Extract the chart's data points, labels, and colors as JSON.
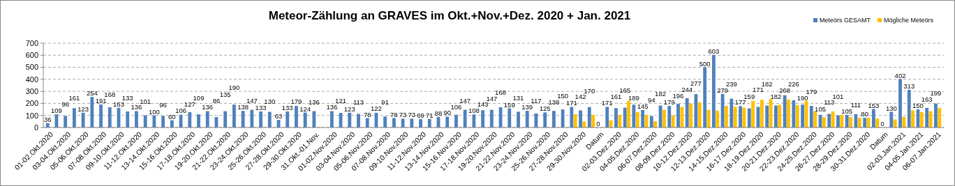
{
  "chart_data": {
    "type": "bar",
    "title": "Meteor-Zählung an GRAVES im Okt.+Nov.+Dez. 2020 + Jan. 2021",
    "categories": [
      "01-02.Okt.2020",
      null,
      "03-04.Okt.2020",
      null,
      "05-06.Okt.2020",
      null,
      "07-08.Okt.2020",
      null,
      "09-10.Okt.2020",
      null,
      "11-12.Okt.2020",
      null,
      "13-14.Okt.2020",
      null,
      "15-16.Okt.2020",
      null,
      "17-18.Okt.2020",
      null,
      "19-20.Okt.2020",
      null,
      "21-22.Okt.2020",
      null,
      "23-24.Okt.2020",
      null,
      "25-26.Okt.2020",
      null,
      "27-28.Okt.2020",
      null,
      "29-30.Okt.2020",
      null,
      "31.Okt.-01.Nov.",
      null,
      "01-02.Nov.2020",
      null,
      "03-04.Nov.2020",
      null,
      "05-06.Nov.2020",
      null,
      "07-08.Nov.2020",
      null,
      "09-10.Nov.2020",
      null,
      "11-12.Nov.2020",
      null,
      "13-14.Nov.2020",
      null,
      "15-16.Nov.2020",
      null,
      "17-18.Nov.2020",
      null,
      "19-20.Nov.2020",
      null,
      "21-22.Nov.2020",
      null,
      "23-24.Nov.2020",
      null,
      "25-26.Nov.2020",
      null,
      "27-28.Nov.2020",
      null,
      "29-30.Nov.2020",
      null,
      "Datum",
      null,
      "02-03.Dez.2020",
      null,
      "04-05.Dez.2020",
      null,
      "06-07.Dez.2020",
      null,
      "08-09.Dez.2020",
      null,
      "10-12.Dez.2020",
      null,
      "12-13.Dez.2020",
      null,
      "14-15.Dez.2020",
      null,
      "16-17.Dez.2020",
      null,
      "18-19.Dez.2020",
      null,
      "20-21.Dez.2020",
      null,
      "22-23.Dez.2020",
      null,
      "24-25.Dez.2020",
      null,
      "26-27.Dez.2020",
      null,
      "28-29.Dez.2020",
      null,
      "30-31.Dez.2020",
      null,
      "Datum",
      null,
      "02-03.Jan.2021",
      null,
      "04-05.Jan.2021",
      null,
      "06-07.Jan.2021"
    ],
    "series": [
      {
        "name": "Meteörs GESAMT",
        "color": "#4f81bd",
        "values": [
          36,
          109,
          96,
          161,
          123,
          254,
          191,
          168,
          163,
          133,
          136,
          101,
          100,
          96,
          60,
          106,
          127,
          109,
          136,
          86,
          135,
          190,
          138,
          147,
          133,
          130,
          63,
          133,
          179,
          124,
          136,
          null,
          136,
          121,
          123,
          113,
          78,
          122,
          91,
          78,
          73,
          73,
          69,
          71,
          88,
          90,
          106,
          147,
          108,
          143,
          147,
          168,
          159,
          131,
          139,
          117,
          125,
          138,
          150,
          171,
          142,
          170,
          0,
          171,
          161,
          165,
          189,
          145,
          94,
          182,
          179,
          196,
          244,
          277,
          500,
          603,
          279,
          239,
          177,
          159,
          171,
          182,
          182,
          268,
          226,
          190,
          179,
          105,
          113,
          101,
          105,
          111,
          80,
          153,
          0,
          130,
          402,
          313,
          150,
          163,
          199
        ],
        "value_labels": [
          "36",
          "109",
          "96",
          "161",
          "123",
          "254",
          "191",
          "168",
          "163",
          "133",
          "136",
          "101",
          "100",
          "96",
          "60",
          "106",
          "127",
          "109",
          "136",
          "86",
          "135",
          "190",
          "138",
          "147",
          "133",
          "130",
          "63",
          "133",
          "179",
          "124",
          "136",
          null,
          "136",
          "121",
          "123",
          "113",
          "78",
          "122",
          "91",
          "78",
          "73",
          "73",
          "69",
          "71",
          "88",
          "90",
          "106",
          "147",
          "108",
          "143",
          "147",
          "168",
          "159",
          "131",
          "139",
          "117",
          "125",
          "138",
          "150",
          "171",
          "142",
          "170",
          "0",
          "171",
          "161",
          "165",
          "189",
          "145",
          "94",
          "182",
          "179",
          "196",
          "244",
          "277",
          "500",
          "603",
          "279",
          "239",
          "177",
          "159",
          "171",
          "182",
          "182",
          "268",
          "226",
          "190",
          "179",
          "105",
          "113",
          "101",
          "105",
          "111",
          "80",
          "153",
          "0",
          "130",
          "402",
          "313",
          "150",
          "163",
          "199"
        ]
      },
      {
        "name": "Mögliche Meteörs",
        "color": "#ffc000",
        "values": [
          null,
          null,
          null,
          null,
          null,
          null,
          null,
          null,
          null,
          null,
          null,
          null,
          null,
          null,
          null,
          null,
          null,
          null,
          null,
          null,
          null,
          null,
          null,
          null,
          null,
          null,
          null,
          null,
          null,
          null,
          null,
          null,
          null,
          null,
          null,
          null,
          null,
          null,
          null,
          null,
          null,
          null,
          null,
          null,
          null,
          null,
          null,
          null,
          null,
          null,
          null,
          null,
          null,
          null,
          null,
          null,
          null,
          null,
          null,
          110,
          50,
          105,
          null,
          60,
          105,
          220,
          128,
          105,
          53,
          147,
          100,
          170,
          198,
          209,
          147,
          140,
          179,
          172,
          165,
          221,
          230,
          235,
          188,
          233,
          186,
          221,
          133,
          86,
          133,
          105,
          86,
          81,
          81,
          74,
          null,
          67,
          88,
          142,
          128,
          135,
          163
        ]
      }
    ],
    "ylim": [
      0,
      700
    ],
    "yticks": [
      0,
      100,
      200,
      300,
      400,
      500,
      600,
      700
    ],
    "grid": "y",
    "legend": "top right"
  }
}
